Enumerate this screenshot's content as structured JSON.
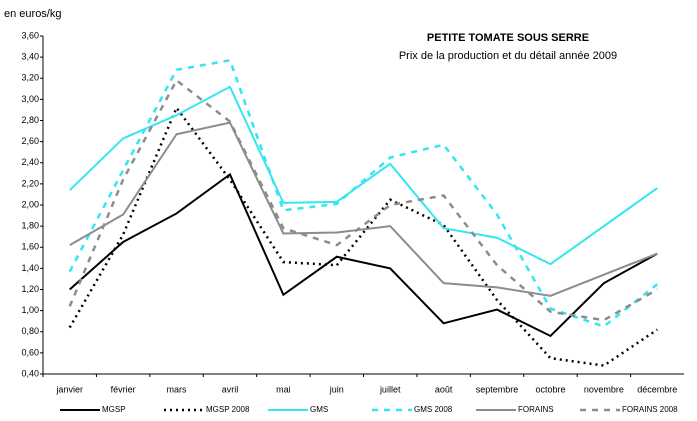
{
  "chart_data": {
    "type": "line",
    "title": "PETITE TOMATE SOUS SERRE",
    "subtitle": "Prix  de la production et du détail année 2009",
    "y_label": "en euros/kg",
    "categories": [
      "janvier",
      "février",
      "mars",
      "avril",
      "mai",
      "juin",
      "juillet",
      "août",
      "septembre",
      "octobre",
      "novembre",
      "décembre"
    ],
    "series": [
      {
        "name": "MGSP",
        "color": "#000000",
        "style": "solid",
        "values": [
          1.2,
          1.65,
          1.92,
          2.29,
          1.15,
          1.51,
          1.4,
          0.88,
          1.01,
          0.76,
          1.26,
          1.54
        ]
      },
      {
        "name": "MGSP 2008",
        "color": "#000000",
        "style": "dotted",
        "values": [
          0.84,
          1.72,
          2.92,
          2.24,
          1.46,
          1.43,
          2.05,
          1.81,
          1.1,
          0.55,
          0.48,
          0.82
        ]
      },
      {
        "name": "GMS",
        "color": "#33e6f0",
        "style": "solid",
        "values": [
          2.14,
          2.63,
          2.85,
          3.12,
          2.02,
          2.03,
          2.39,
          1.78,
          1.69,
          1.44,
          1.8,
          2.16
        ]
      },
      {
        "name": "GMS 2008",
        "color": "#33e6f0",
        "style": "dashed",
        "values": [
          1.37,
          2.33,
          3.28,
          3.37,
          1.95,
          2.01,
          2.45,
          2.57,
          1.91,
          1.02,
          0.85,
          1.25
        ]
      },
      {
        "name": "FORAINS",
        "color": "#8c8c8c",
        "style": "solid",
        "values": [
          1.62,
          1.91,
          2.67,
          2.78,
          1.73,
          1.74,
          1.8,
          1.26,
          1.22,
          1.14,
          1.34,
          1.54
        ]
      },
      {
        "name": "FORAINS 2008",
        "color": "#8c8c8c",
        "style": "dashed",
        "values": [
          1.04,
          2.24,
          3.18,
          2.79,
          1.78,
          1.62,
          2.0,
          2.09,
          1.43,
          0.99,
          0.91,
          1.2
        ]
      }
    ],
    "ylim": [
      0.4,
      3.6
    ],
    "yticks": [
      {
        "value": 0.4,
        "label": "0,40"
      },
      {
        "value": 0.6,
        "label": "0,60"
      },
      {
        "value": 0.8,
        "label": "0,80"
      },
      {
        "value": 1.0,
        "label": "1,00"
      },
      {
        "value": 1.2,
        "label": "1,20"
      },
      {
        "value": 1.4,
        "label": "1,40"
      },
      {
        "value": 1.6,
        "label": "1,60"
      },
      {
        "value": 1.8,
        "label": "1,80"
      },
      {
        "value": 2.0,
        "label": "2,00"
      },
      {
        "value": 2.2,
        "label": "2,20"
      },
      {
        "value": 2.4,
        "label": "2,40"
      },
      {
        "value": 2.6,
        "label": "2,60"
      },
      {
        "value": 2.8,
        "label": "2,80"
      },
      {
        "value": 3.0,
        "label": "3,00"
      },
      {
        "value": 3.2,
        "label": "3,20"
      },
      {
        "value": 3.4,
        "label": "3,40"
      },
      {
        "value": 3.6,
        "label": "3,60"
      }
    ],
    "grid": false,
    "legend": "bottom"
  }
}
